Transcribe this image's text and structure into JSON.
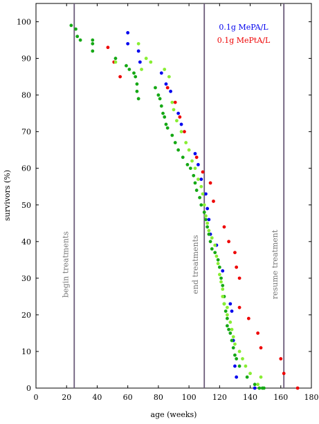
{
  "chart_data": {
    "type": "scatter",
    "title": "",
    "xlabel": "age (weeks)",
    "ylabel": "survivors (%)",
    "xlim": [
      0,
      180
    ],
    "ylim": [
      0,
      105
    ],
    "x_ticks": [
      "0",
      "20",
      "40",
      "60",
      "80",
      "100",
      "120",
      "140",
      "160",
      "180"
    ],
    "y_ticks": [
      "0",
      "10",
      "20",
      "30",
      "40",
      "50",
      "60",
      "70",
      "80",
      "90",
      "100"
    ],
    "grid": false,
    "legend_position": "top-right",
    "legend": [
      {
        "label": "0.1g MePA/L",
        "color": "#0000ee"
      },
      {
        "label": "0.1g MePtA/L",
        "color": "#ee0000"
      }
    ],
    "vlines": [
      {
        "x": 25,
        "label": "begin treatments"
      },
      {
        "x": 110,
        "label": "end treatments"
      },
      {
        "x": 162,
        "label": "resume treatment"
      }
    ],
    "series": [
      {
        "name": "0.1g MePA/L",
        "color": "#0000ee",
        "points": [
          [
            60,
            97
          ],
          [
            60,
            94
          ],
          [
            67,
            92
          ],
          [
            68,
            89
          ],
          [
            82,
            86
          ],
          [
            85,
            83
          ],
          [
            88,
            81
          ],
          [
            93,
            75
          ],
          [
            95,
            72
          ],
          [
            104,
            64
          ],
          [
            106,
            61
          ],
          [
            108,
            57
          ],
          [
            111,
            53
          ],
          [
            112,
            49
          ],
          [
            113,
            46
          ],
          [
            114,
            42
          ],
          [
            118,
            39
          ],
          [
            122,
            32
          ],
          [
            127,
            23
          ],
          [
            128,
            21
          ],
          [
            129,
            13
          ],
          [
            130,
            6
          ],
          [
            131,
            3
          ],
          [
            143,
            0
          ]
        ]
      },
      {
        "name": "0.1g MePtA/L",
        "color": "#ee0000",
        "points": [
          [
            47,
            93
          ],
          [
            51,
            89
          ],
          [
            55,
            85
          ],
          [
            86,
            82
          ],
          [
            91,
            78
          ],
          [
            94,
            74
          ],
          [
            97,
            70
          ],
          [
            105,
            63
          ],
          [
            109,
            59
          ],
          [
            114,
            56
          ],
          [
            116,
            51
          ],
          [
            123,
            44
          ],
          [
            126,
            40
          ],
          [
            130,
            37
          ],
          [
            131,
            33
          ],
          [
            133,
            30
          ],
          [
            133,
            22
          ],
          [
            139,
            19
          ],
          [
            145,
            15
          ],
          [
            147,
            11
          ],
          [
            160,
            8
          ],
          [
            162,
            4
          ],
          [
            171,
            0
          ]
        ]
      },
      {
        "name": "",
        "color": "#15a815",
        "points": [
          [
            23,
            99
          ],
          [
            26,
            98
          ],
          [
            27,
            96
          ],
          [
            29,
            95
          ],
          [
            37,
            95
          ],
          [
            37,
            94
          ],
          [
            37,
            92
          ],
          [
            52,
            90
          ],
          [
            59,
            88
          ],
          [
            61,
            87
          ],
          [
            64,
            86
          ],
          [
            65,
            85
          ],
          [
            66,
            83
          ],
          [
            66,
            81
          ],
          [
            67,
            79
          ],
          [
            78,
            82
          ],
          [
            80,
            80
          ],
          [
            81,
            79
          ],
          [
            82,
            77
          ],
          [
            83,
            75
          ],
          [
            84,
            74
          ],
          [
            85,
            72
          ],
          [
            86,
            71
          ],
          [
            89,
            69
          ],
          [
            91,
            67
          ],
          [
            93,
            65
          ],
          [
            96,
            63
          ],
          [
            99,
            61
          ],
          [
            101,
            60
          ],
          [
            103,
            58
          ],
          [
            104,
            56
          ],
          [
            105,
            54
          ],
          [
            107,
            52
          ],
          [
            108,
            50
          ],
          [
            110,
            48
          ],
          [
            111,
            46
          ],
          [
            112,
            44
          ],
          [
            113,
            42
          ],
          [
            114,
            40
          ],
          [
            115,
            38
          ],
          [
            117,
            37
          ],
          [
            119,
            35
          ],
          [
            120,
            33
          ],
          [
            121,
            30
          ],
          [
            122,
            28
          ],
          [
            123,
            25
          ],
          [
            123,
            23
          ],
          [
            124,
            21
          ],
          [
            125,
            19
          ],
          [
            125,
            17
          ],
          [
            126,
            16
          ],
          [
            127,
            15
          ],
          [
            128,
            13
          ],
          [
            129,
            11
          ],
          [
            130,
            9
          ],
          [
            131,
            8
          ],
          [
            133,
            6
          ],
          [
            138,
            3
          ],
          [
            143,
            1
          ],
          [
            146,
            0
          ],
          [
            148,
            0
          ],
          [
            149,
            0
          ]
        ]
      },
      {
        "name": "",
        "color": "#88ee33",
        "points": [
          [
            52,
            89
          ],
          [
            67,
            94
          ],
          [
            69,
            87
          ],
          [
            72,
            90
          ],
          [
            75,
            89
          ],
          [
            84,
            87
          ],
          [
            87,
            85
          ],
          [
            89,
            78
          ],
          [
            90,
            76
          ],
          [
            92,
            73
          ],
          [
            95,
            70
          ],
          [
            98,
            67
          ],
          [
            100,
            65
          ],
          [
            102,
            62
          ],
          [
            104,
            60
          ],
          [
            106,
            57
          ],
          [
            108,
            55
          ],
          [
            109,
            53
          ],
          [
            110,
            50
          ],
          [
            111,
            47
          ],
          [
            112,
            45
          ],
          [
            113,
            43
          ],
          [
            115,
            41
          ],
          [
            117,
            39
          ],
          [
            118,
            36
          ],
          [
            119,
            34
          ],
          [
            120,
            31
          ],
          [
            121,
            29
          ],
          [
            122,
            27
          ],
          [
            122,
            25
          ],
          [
            123,
            23
          ],
          [
            125,
            22
          ],
          [
            125,
            20
          ],
          [
            127,
            18
          ],
          [
            128,
            16
          ],
          [
            129,
            14
          ],
          [
            130,
            12
          ],
          [
            133,
            10
          ],
          [
            135,
            8
          ],
          [
            137,
            6
          ],
          [
            140,
            4
          ],
          [
            145,
            1
          ],
          [
            147,
            3
          ]
        ]
      }
    ]
  }
}
